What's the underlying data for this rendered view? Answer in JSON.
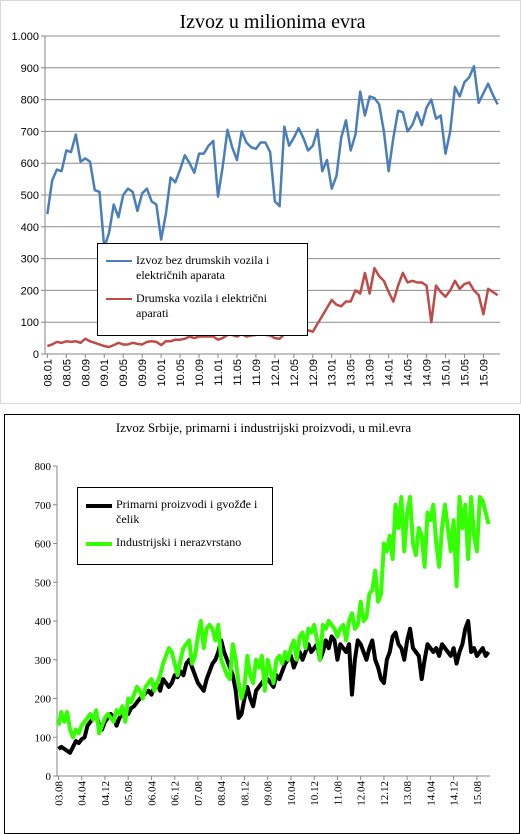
{
  "chart_data": [
    {
      "type": "line",
      "title": "Izvoz u milionima evra",
      "grid": true,
      "ylim": [
        0,
        1000
      ],
      "yticks": [
        0,
        100,
        200,
        300,
        400,
        500,
        600,
        700,
        800,
        900,
        {
          "value": 1000,
          "label": "1.000"
        }
      ],
      "categories": [
        "08.01",
        null,
        null,
        null,
        "08.05",
        null,
        null,
        null,
        "08.09",
        null,
        null,
        null,
        "09.01",
        null,
        null,
        null,
        "09.05",
        null,
        null,
        null,
        "09.09",
        null,
        null,
        null,
        "10.01",
        null,
        null,
        null,
        "10.05",
        null,
        null,
        null,
        "10.09",
        null,
        null,
        null,
        "11.01",
        null,
        null,
        null,
        "11.05",
        null,
        null,
        null,
        "11.09",
        null,
        null,
        null,
        "12.01",
        null,
        null,
        null,
        "12.05",
        null,
        null,
        null,
        "12.09",
        null,
        null,
        null,
        "13.01",
        null,
        null,
        null,
        "13.05",
        null,
        null,
        null,
        "13.09",
        null,
        null,
        null,
        "14.01",
        null,
        null,
        null,
        "14.05",
        null,
        null,
        null,
        "14.09",
        null,
        null,
        null,
        "15.01",
        null,
        null,
        null,
        "15.05",
        null,
        null,
        null,
        "15.09",
        null,
        null,
        null
      ],
      "series": [
        {
          "name": "Izvoz bez drumskih vozila i električnih aparata",
          "color": "#4a7ebb",
          "values": [
            440,
            545,
            580,
            575,
            640,
            635,
            690,
            605,
            615,
            605,
            515,
            510,
            335,
            380,
            470,
            430,
            500,
            520,
            510,
            450,
            505,
            520,
            480,
            470,
            360,
            440,
            555,
            540,
            580,
            625,
            600,
            570,
            630,
            630,
            655,
            670,
            495,
            590,
            705,
            650,
            610,
            700,
            665,
            650,
            645,
            665,
            665,
            635,
            480,
            465,
            715,
            655,
            680,
            710,
            680,
            640,
            655,
            705,
            575,
            610,
            520,
            560,
            680,
            735,
            640,
            690,
            825,
            750,
            810,
            805,
            785,
            700,
            575,
            680,
            765,
            760,
            700,
            720,
            760,
            720,
            775,
            800,
            740,
            750,
            630,
            700,
            840,
            810,
            855,
            870,
            905,
            790,
            820,
            850,
            815,
            785
          ]
        },
        {
          "name": "Drumska vozila i električni aparati",
          "color": "#be4b48",
          "values": [
            25,
            30,
            38,
            35,
            40,
            38,
            40,
            35,
            48,
            40,
            35,
            30,
            25,
            22,
            28,
            35,
            30,
            30,
            35,
            32,
            30,
            38,
            40,
            38,
            28,
            40,
            40,
            45,
            45,
            48,
            55,
            50,
            55,
            55,
            55,
            55,
            45,
            50,
            60,
            60,
            55,
            62,
            55,
            58,
            60,
            62,
            60,
            58,
            50,
            48,
            62,
            65,
            65,
            70,
            68,
            75,
            70,
            95,
            120,
            145,
            170,
            155,
            150,
            165,
            165,
            200,
            190,
            255,
            190,
            270,
            245,
            230,
            195,
            165,
            215,
            255,
            225,
            230,
            225,
            225,
            215,
            100,
            215,
            195,
            180,
            200,
            230,
            205,
            220,
            225,
            200,
            185,
            125,
            205,
            195,
            185
          ]
        }
      ]
    },
    {
      "type": "line",
      "title": "Izvoz Srbije, primarni i industrijski  proizvodi, u mil.evra",
      "grid": false,
      "ylim": [
        0,
        800
      ],
      "yticks": [
        0,
        100,
        200,
        300,
        400,
        500,
        600,
        700,
        800
      ],
      "categories": [
        "03.08",
        null,
        null,
        null,
        null,
        null,
        null,
        null,
        "04.04",
        null,
        null,
        null,
        null,
        null,
        null,
        null,
        "04.12",
        null,
        null,
        null,
        null,
        null,
        null,
        null,
        "05.08",
        null,
        null,
        null,
        null,
        null,
        null,
        null,
        "06.04",
        null,
        null,
        null,
        null,
        null,
        null,
        null,
        "06.12",
        null,
        null,
        null,
        null,
        null,
        null,
        null,
        "07.08",
        null,
        null,
        null,
        null,
        null,
        null,
        null,
        "08.04",
        null,
        null,
        null,
        null,
        null,
        null,
        null,
        "08.12",
        null,
        null,
        null,
        null,
        null,
        null,
        null,
        "09.08",
        null,
        null,
        null,
        null,
        null,
        null,
        null,
        "10.04",
        null,
        null,
        null,
        null,
        null,
        null,
        null,
        "10.12",
        null,
        null,
        null,
        null,
        null,
        null,
        null,
        "11.08",
        null,
        null,
        null,
        null,
        null,
        null,
        null,
        "12.04",
        null,
        null,
        null,
        null,
        null,
        null,
        null,
        "12.12",
        null,
        null,
        null,
        null,
        null,
        null,
        null,
        "13.08",
        null,
        null,
        null,
        null,
        null,
        null,
        null,
        "14.04",
        null,
        null,
        null,
        null,
        null,
        null,
        null,
        "14.12",
        null,
        null,
        null,
        null,
        null,
        null,
        null,
        "15.08",
        null,
        null,
        null,
        null
      ],
      "series": [
        {
          "name": "Primarni proizvodi i gvožđe i čelik",
          "color": "#000000",
          "values": [
            70,
            75,
            70,
            65,
            60,
            75,
            90,
            85,
            95,
            100,
            130,
            140,
            150,
            160,
            130,
            120,
            140,
            150,
            160,
            150,
            130,
            150,
            160,
            170,
            160,
            175,
            180,
            190,
            200,
            205,
            215,
            220,
            210,
            230,
            240,
            220,
            250,
            240,
            230,
            240,
            260,
            255,
            270,
            260,
            290,
            300,
            280,
            260,
            240,
            230,
            220,
            250,
            270,
            290,
            300,
            320,
            350,
            320,
            300,
            280,
            260,
            220,
            150,
            160,
            200,
            230,
            200,
            180,
            220,
            230,
            240,
            250,
            250,
            240,
            230,
            260,
            250,
            270,
            290,
            300,
            310,
            280,
            300,
            320,
            300,
            320,
            340,
            320,
            330,
            340,
            300,
            320,
            350,
            330,
            360,
            350,
            300,
            340,
            330,
            320,
            340,
            210,
            300,
            350,
            340,
            320,
            300,
            330,
            350,
            300,
            280,
            250,
            240,
            300,
            320,
            360,
            370,
            340,
            330,
            300,
            350,
            380,
            330,
            320,
            310,
            250,
            300,
            340,
            330,
            320,
            330,
            310,
            340,
            330,
            320,
            310,
            330,
            290,
            320,
            340,
            380,
            400,
            320,
            330,
            310,
            320,
            330,
            310,
            320
          ]
        },
        {
          "name": "Industrijski i nerazvrstano",
          "color": "#33ff00",
          "values": [
            130,
            165,
            140,
            165,
            120,
            100,
            120,
            110,
            130,
            140,
            150,
            160,
            145,
            170,
            110,
            130,
            150,
            160,
            150,
            140,
            170,
            160,
            180,
            140,
            200,
            190,
            210,
            230,
            220,
            200,
            230,
            240,
            250,
            220,
            240,
            260,
            290,
            310,
            330,
            320,
            290,
            260,
            300,
            330,
            340,
            350,
            290,
            310,
            360,
            400,
            330,
            380,
            390,
            380,
            350,
            390,
            300,
            280,
            260,
            250,
            340,
            300,
            240,
            200,
            230,
            310,
            260,
            240,
            300,
            280,
            310,
            220,
            300,
            270,
            240,
            300,
            310,
            290,
            320,
            300,
            330,
            350,
            300,
            360,
            370,
            330,
            380,
            370,
            390,
            350,
            300,
            390,
            380,
            400,
            390,
            380,
            360,
            380,
            390,
            350,
            400,
            420,
            380,
            390,
            450,
            400,
            410,
            470,
            480,
            530,
            450,
            470,
            600,
            580,
            620,
            560,
            700,
            640,
            720,
            580,
            680,
            720,
            600,
            570,
            640,
            620,
            540,
            680,
            660,
            700,
            600,
            540,
            640,
            700,
            640,
            580,
            660,
            490,
            720,
            640,
            700,
            560,
            720,
            620,
            580,
            720,
            710,
            680,
            650
          ]
        }
      ]
    }
  ]
}
